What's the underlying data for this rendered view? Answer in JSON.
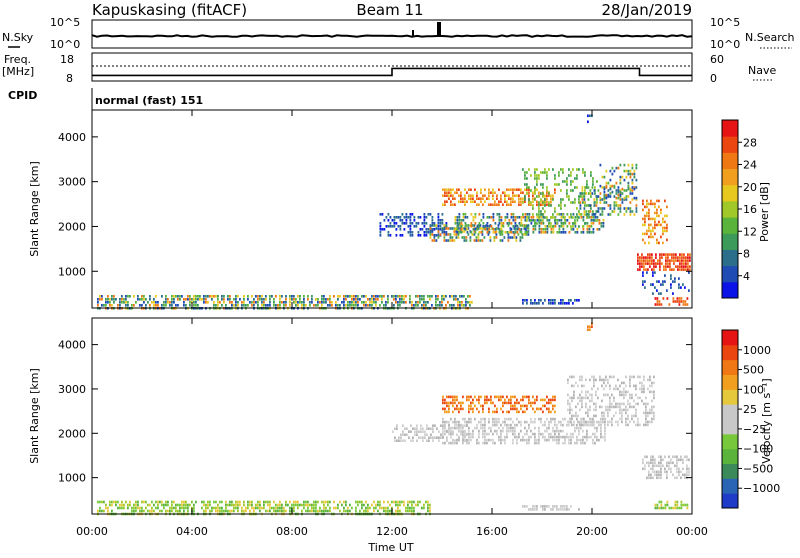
{
  "header": {
    "station": "Kapuskasing (fitACF)",
    "beam": "Beam 11",
    "date": "28/Jan/2019"
  },
  "noise_panel": {
    "left_label": "N.Sky",
    "left_ticks": [
      "10^5",
      "10^0"
    ],
    "right_ticks": [
      "10^5",
      "10^0"
    ],
    "right_label": "N.Search"
  },
  "freq_panel": {
    "left_label_line1": "Freq.",
    "left_label_line2": "[MHz]",
    "left_ticks": [
      "18",
      "8"
    ],
    "right_ticks": [
      "60",
      "0"
    ],
    "right_label": "Nave",
    "cpid_label": "CPID",
    "freq_steps": [
      [
        0,
        10
      ],
      [
        12,
        10
      ],
      [
        12,
        12.5
      ],
      [
        21.9,
        12.5
      ],
      [
        21.9,
        10
      ],
      [
        24,
        10
      ]
    ],
    "nave_level": 12.5
  },
  "cpid_panel": {
    "text": "normal (fast) 151"
  },
  "x_axis": {
    "label": "Time UT",
    "ticks": [
      "00:00",
      "04:00",
      "08:00",
      "12:00",
      "16:00",
      "20:00",
      "00:00"
    ],
    "range_hours": [
      0,
      24
    ]
  },
  "power_panel": {
    "ylabel": "Slant Range [km]",
    "yticks": [
      "4000",
      "3000",
      "2000",
      "1000"
    ],
    "ylim": [
      180,
      4600
    ],
    "colorbar_label": "Power [dB]",
    "colorbar_ticks": [
      "28",
      "24",
      "20",
      "16",
      "12",
      "8",
      "4"
    ],
    "colors": [
      "#0a14e6",
      "#1e4bb4",
      "#2a6e8c",
      "#3c9a5a",
      "#5ab43c",
      "#a0c828",
      "#e6c81e",
      "#f0a01e",
      "#f07814",
      "#eb460f",
      "#e61414"
    ]
  },
  "velocity_panel": {
    "ylabel": "Slant Range [km]",
    "yticks": [
      "4000",
      "3000",
      "2000",
      "1000"
    ],
    "ylim": [
      180,
      4600
    ],
    "colorbar_label": "Velocity [m s⁻¹]",
    "colorbar_ticks": [
      "1000",
      "500",
      "100",
      "25",
      "−25",
      "−100",
      "−500",
      "−1000"
    ],
    "colors": [
      "#1e3cc8",
      "#2a64b4",
      "#3c8a5a",
      "#5ab43c",
      "#78c83c",
      "#c8c8c8",
      "#c8c8c8",
      "#e6c83c",
      "#f0a01e",
      "#f07814",
      "#eb460f",
      "#e61414"
    ]
  },
  "chart_data": {
    "type": "heatmap",
    "x_unit": "hours UT",
    "y_unit": "km",
    "power_regions": [
      {
        "t": [
          0.2,
          15.2
        ],
        "r": [
          200,
          470
        ],
        "palette": "mixed",
        "density": 0.65
      },
      {
        "t": [
          11.5,
          14.2
        ],
        "r": [
          1800,
          2300
        ],
        "palette": "blue",
        "density": 0.5
      },
      {
        "t": [
          13.5,
          17.5
        ],
        "r": [
          1650,
          2050
        ],
        "palette": "mixed",
        "density": 0.55
      },
      {
        "t": [
          14.5,
          20.5
        ],
        "r": [
          1850,
          2300
        ],
        "palette": "mixed",
        "density": 0.5
      },
      {
        "t": [
          14.0,
          18.5
        ],
        "r": [
          2450,
          2850
        ],
        "palette": "warm",
        "density": 0.55
      },
      {
        "t": [
          17.2,
          20.2
        ],
        "r": [
          2000,
          3300
        ],
        "palette": "green",
        "density": 0.3
      },
      {
        "t": [
          19.5,
          21.8
        ],
        "r": [
          2250,
          2900
        ],
        "palette": "mixed",
        "density": 0.45
      },
      {
        "t": [
          20.3,
          21.8
        ],
        "r": [
          2600,
          3400
        ],
        "palette": "mixed",
        "density": 0.35
      },
      {
        "t": [
          22.0,
          23.0
        ],
        "r": [
          1600,
          2600
        ],
        "palette": "warm",
        "density": 0.45
      },
      {
        "t": [
          21.8,
          23.9
        ],
        "r": [
          1000,
          1400
        ],
        "palette": "red",
        "density": 0.75
      },
      {
        "t": [
          22.0,
          23.9
        ],
        "r": [
          500,
          1000
        ],
        "palette": "blue",
        "density": 0.2
      },
      {
        "t": [
          17.2,
          19.5
        ],
        "r": [
          260,
          380
        ],
        "palette": "blue",
        "density": 0.6
      },
      {
        "t": [
          22.5,
          23.8
        ],
        "r": [
          280,
          420
        ],
        "palette": "red",
        "density": 0.5
      },
      {
        "t": [
          19.8,
          20.0
        ],
        "r": [
          4300,
          4500
        ],
        "palette": "blue",
        "density": 0.6
      }
    ],
    "velocity_regions": [
      {
        "t": [
          0.2,
          13.5
        ],
        "r": [
          200,
          480
        ],
        "palette": "greenyellow",
        "density": 0.6
      },
      {
        "t": [
          12.0,
          15.0
        ],
        "r": [
          1850,
          2200
        ],
        "palette": "gray",
        "density": 0.45
      },
      {
        "t": [
          14.0,
          20.5
        ],
        "r": [
          1800,
          2350
        ],
        "palette": "gray",
        "density": 0.55
      },
      {
        "t": [
          14.0,
          18.5
        ],
        "r": [
          2450,
          2850
        ],
        "palette": "orange",
        "density": 0.55
      },
      {
        "t": [
          19.0,
          22.5
        ],
        "r": [
          2200,
          3300
        ],
        "palette": "gray",
        "density": 0.4
      },
      {
        "t": [
          22.0,
          23.9
        ],
        "r": [
          1000,
          1500
        ],
        "palette": "gray",
        "density": 0.55
      },
      {
        "t": [
          17.2,
          19.5
        ],
        "r": [
          260,
          380
        ],
        "palette": "gray",
        "density": 0.6
      },
      {
        "t": [
          22.5,
          23.8
        ],
        "r": [
          280,
          480
        ],
        "palette": "greenyellow",
        "density": 0.5
      },
      {
        "t": [
          19.8,
          20.0
        ],
        "r": [
          4300,
          4500
        ],
        "palette": "orange",
        "density": 0.6
      }
    ]
  }
}
